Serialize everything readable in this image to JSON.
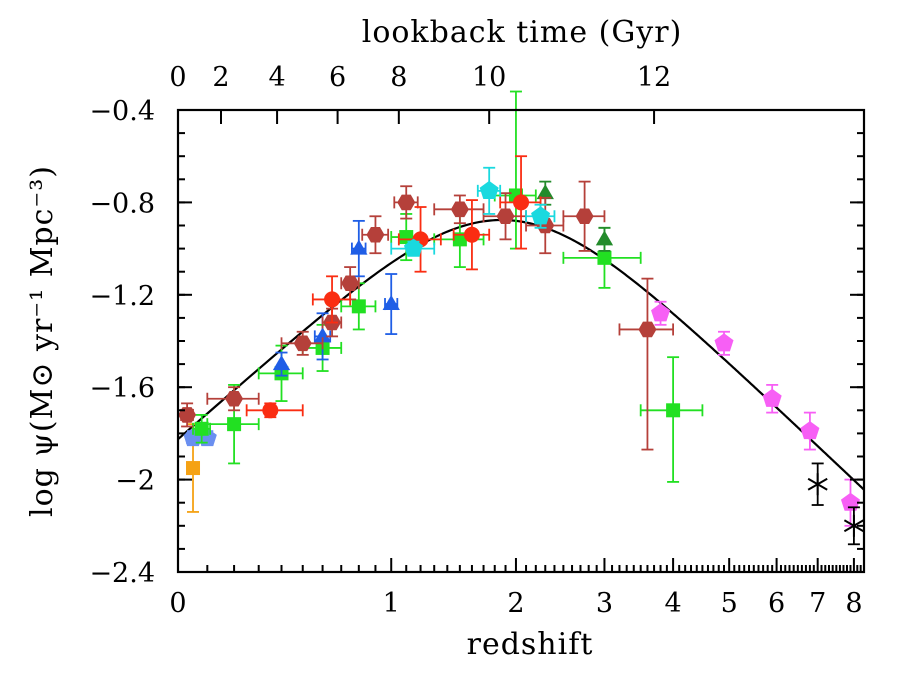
{
  "chart_data": {
    "type": "scatter",
    "title": "",
    "xlabel": "redshift",
    "ylabel": "log ψ(M⊙ yr⁻¹ Mpc⁻³)",
    "top_axis_label": "lookback time (Gyr)",
    "x_scale": "log(1+z)",
    "xlim": [
      0,
      8.3
    ],
    "ylim": [
      -2.4,
      -0.4
    ],
    "x_ticks": [
      0,
      1,
      2,
      3,
      4,
      5,
      6,
      7,
      8
    ],
    "x_tick_labels": [
      "0",
      "1",
      "2",
      "3",
      "4",
      "5",
      "6",
      "7",
      "8"
    ],
    "y_ticks": [
      -2.4,
      -2.0,
      -1.6,
      -1.2,
      -0.8,
      -0.4
    ],
    "y_tick_labels": [
      "−2.4",
      "−2",
      "−1.6",
      "−1.2",
      "−0.8",
      "−0.4"
    ],
    "top_ticks": [
      {
        "label": "0",
        "z": 0.0
      },
      {
        "label": "2",
        "z": 0.15
      },
      {
        "label": "4",
        "z": 0.38
      },
      {
        "label": "6",
        "z": 0.68
      },
      {
        "label": "8",
        "z": 1.05
      },
      {
        "label": "10",
        "z": 1.75
      },
      {
        "label": "12",
        "z": 3.7
      }
    ],
    "grid": false,
    "fit_curve": {
      "formula": "psi = 0.015 (1+z)^2.7 / (1 + ((1+z)/2.9)^5.6)",
      "color": "#000000"
    },
    "series": [
      {
        "marker": "square",
        "color": "#f5a214",
        "points": [
          {
            "x": 0.05,
            "y": -1.95,
            "ylo": 0.19,
            "yhi": 0.19,
            "xlo": 0,
            "xhi": 0
          }
        ]
      },
      {
        "marker": "pentagon",
        "color": "#6a8ff0",
        "points": [
          {
            "x": 0.05,
            "y": -1.82,
            "ylo": 0.03,
            "yhi": 0.03,
            "xlo": 0.02,
            "xhi": 0.02
          },
          {
            "x": 0.1,
            "y": -1.82,
            "ylo": 0.03,
            "yhi": 0.03,
            "xlo": 0,
            "xhi": 0
          }
        ]
      },
      {
        "marker": "square",
        "color": "#22e022",
        "points": [
          {
            "x": 0.08,
            "y": -1.78,
            "ylo": 0.06,
            "yhi": 0.06,
            "xlo": 0.03,
            "xhi": 0.03
          },
          {
            "x": 0.2,
            "y": -1.76,
            "ylo": 0.17,
            "yhi": 0.17,
            "xlo": 0.1,
            "xhi": 0.1
          },
          {
            "x": 0.4,
            "y": -1.54,
            "ylo": 0.12,
            "yhi": 0.12,
            "xlo": 0.1,
            "xhi": 0.1
          },
          {
            "x": 0.6,
            "y": -1.43,
            "ylo": 0.1,
            "yhi": 0.1,
            "xlo": 0.1,
            "xhi": 0.1
          },
          {
            "x": 0.8,
            "y": -1.25,
            "ylo": 0.1,
            "yhi": 0.1,
            "xlo": 0.1,
            "xhi": 0.1
          },
          {
            "x": 1.1,
            "y": -0.95,
            "ylo": 0.1,
            "yhi": 0.1,
            "xlo": 0.1,
            "xhi": 0.1
          },
          {
            "x": 1.5,
            "y": -0.96,
            "ylo": 0.12,
            "yhi": 0.12,
            "xlo": 0.2,
            "xhi": 0.2
          },
          {
            "x": 2.0,
            "y": -0.77,
            "ylo": 0.23,
            "yhi": 0.45,
            "xlo": 0.2,
            "xhi": 0.2
          },
          {
            "x": 3.0,
            "y": -1.04,
            "ylo": 0.13,
            "yhi": 0.13,
            "xlo": 0.5,
            "xhi": 0.5
          },
          {
            "x": 4.0,
            "y": -1.7,
            "ylo": 0.31,
            "yhi": 0.23,
            "xlo": 0.5,
            "xhi": 0.5
          }
        ]
      },
      {
        "marker": "triangle",
        "color": "#1f5ee6",
        "points": [
          {
            "x": 0.4,
            "y": -1.5,
            "ylo": 0.05,
            "yhi": 0.05,
            "xlo": 0,
            "xhi": 0
          },
          {
            "x": 0.6,
            "y": -1.38,
            "ylo": 0.1,
            "yhi": 0.1,
            "xlo": 0.04,
            "xhi": 0.04
          },
          {
            "x": 0.8,
            "y": -1.0,
            "ylo": 0.12,
            "yhi": 0.12,
            "xlo": 0.04,
            "xhi": 0.04
          },
          {
            "x": 1.0,
            "y": -1.24,
            "ylo": 0.13,
            "yhi": 0.13,
            "xlo": 0.04,
            "xhi": 0.04
          }
        ]
      },
      {
        "marker": "triangle",
        "color": "#238b2b",
        "points": [
          {
            "x": 2.3,
            "y": -0.76,
            "ylo": 0.05,
            "yhi": 0.05,
            "xlo": 0,
            "xhi": 0
          },
          {
            "x": 3.0,
            "y": -0.96,
            "ylo": 0.05,
            "yhi": 0.05,
            "xlo": 0,
            "xhi": 0
          }
        ]
      },
      {
        "marker": "hexagon",
        "color": "#b5403a",
        "points": [
          {
            "x": 0.03,
            "y": -1.72,
            "ylo": 0.05,
            "yhi": 0.05,
            "xlo": 0.02,
            "xhi": 0.02
          },
          {
            "x": 0.2,
            "y": -1.65,
            "ylo": 0.05,
            "yhi": 0.05,
            "xlo": 0.1,
            "xhi": 0.1
          },
          {
            "x": 0.5,
            "y": -1.41,
            "ylo": 0.05,
            "yhi": 0.05,
            "xlo": 0.1,
            "xhi": 0.1
          },
          {
            "x": 0.65,
            "y": -1.32,
            "ylo": 0.06,
            "yhi": 0.06,
            "xlo": 0.05,
            "xhi": 0.05
          },
          {
            "x": 0.75,
            "y": -1.15,
            "ylo": 0.07,
            "yhi": 0.07,
            "xlo": 0.05,
            "xhi": 0.05
          },
          {
            "x": 0.9,
            "y": -0.94,
            "ylo": 0.08,
            "yhi": 0.08,
            "xlo": 0.08,
            "xhi": 0.08
          },
          {
            "x": 1.1,
            "y": -0.8,
            "ylo": 0.07,
            "yhi": 0.07,
            "xlo": 0.08,
            "xhi": 0.08
          },
          {
            "x": 1.5,
            "y": -0.83,
            "ylo": 0.06,
            "yhi": 0.06,
            "xlo": 0.2,
            "xhi": 0.2
          },
          {
            "x": 1.9,
            "y": -0.86,
            "ylo": 0.1,
            "yhi": 0.1,
            "xlo": 0.2,
            "xhi": 0.2
          },
          {
            "x": 2.3,
            "y": -0.9,
            "ylo": 0.12,
            "yhi": 0.12,
            "xlo": 0.2,
            "xhi": 0.2
          },
          {
            "x": 2.75,
            "y": -0.86,
            "ylo": 0.15,
            "yhi": 0.15,
            "xlo": 0.25,
            "xhi": 0.25
          },
          {
            "x": 3.6,
            "y": -1.35,
            "ylo": 0.52,
            "yhi": 0.22,
            "xlo": 0.4,
            "xhi": 0.4
          }
        ]
      },
      {
        "marker": "circle",
        "color": "#fa2d12",
        "points": [
          {
            "x": 0.35,
            "y": -1.7,
            "ylo": 0.03,
            "yhi": 0.03,
            "xlo": 0.1,
            "xhi": 0.15
          },
          {
            "x": 0.65,
            "y": -1.22,
            "ylo": 0.1,
            "yhi": 0.1,
            "xlo": 0.1,
            "xhi": 0.1
          },
          {
            "x": 1.2,
            "y": -0.96,
            "ylo": 0.14,
            "yhi": 0.14,
            "xlo": 0.15,
            "xhi": 0.15
          },
          {
            "x": 1.6,
            "y": -0.94,
            "ylo": 0.15,
            "yhi": 0.15,
            "xlo": 0.15,
            "xhi": 0.15
          },
          {
            "x": 2.05,
            "y": -0.8,
            "ylo": 0.2,
            "yhi": 0.2,
            "xlo": 0.2,
            "xhi": 0.2
          }
        ]
      },
      {
        "marker": "pentagon",
        "color": "#1ad9df",
        "points": [
          {
            "x": 1.15,
            "y": -1.0,
            "ylo": 0.03,
            "yhi": 0.03,
            "xlo": 0.15,
            "xhi": 0.15
          },
          {
            "x": 1.75,
            "y": -0.75,
            "ylo": 0.1,
            "yhi": 0.1,
            "xlo": 0.1,
            "xhi": 0.1
          },
          {
            "x": 2.25,
            "y": -0.86,
            "ylo": 0.05,
            "yhi": 0.05,
            "xlo": 0.15,
            "xhi": 0.15
          }
        ]
      },
      {
        "marker": "pentagon",
        "color": "#f75ff5",
        "points": [
          {
            "x": 3.8,
            "y": -1.28,
            "ylo": 0.05,
            "yhi": 0.05,
            "xlo": 0,
            "xhi": 0
          },
          {
            "x": 4.9,
            "y": -1.41,
            "ylo": 0.05,
            "yhi": 0.05,
            "xlo": 0,
            "xhi": 0
          },
          {
            "x": 5.9,
            "y": -1.65,
            "ylo": 0.06,
            "yhi": 0.06,
            "xlo": 0,
            "xhi": 0
          },
          {
            "x": 6.8,
            "y": -1.79,
            "ylo": 0.08,
            "yhi": 0.08,
            "xlo": 0,
            "xhi": 0
          },
          {
            "x": 7.9,
            "y": -2.1,
            "ylo": 0.1,
            "yhi": 0.1,
            "xlo": 0,
            "xhi": 0
          }
        ]
      },
      {
        "marker": "cross",
        "color": "#000000",
        "points": [
          {
            "x": 7.0,
            "y": -2.02,
            "ylo": 0.09,
            "yhi": 0.09,
            "xlo": 0,
            "xhi": 0
          },
          {
            "x": 8.0,
            "y": -2.2,
            "ylo": 0.08,
            "yhi": 0.08,
            "xlo": 0,
            "xhi": 0
          }
        ]
      }
    ]
  }
}
